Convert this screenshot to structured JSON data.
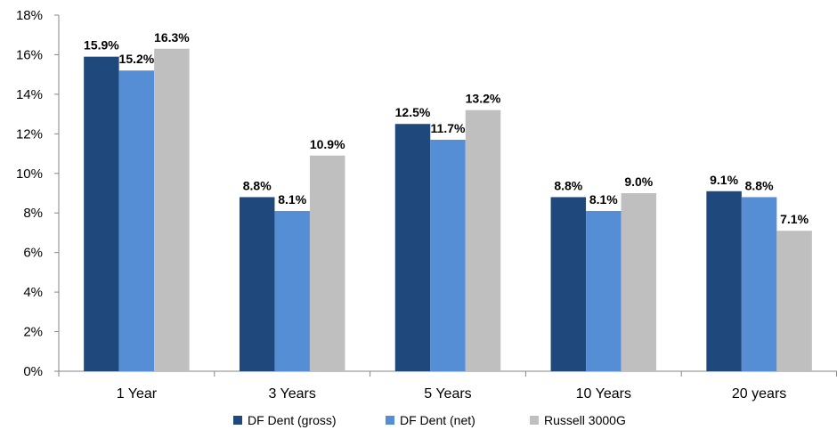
{
  "chart_data": {
    "type": "bar",
    "categories": [
      "1 Year",
      "3 Years",
      "5 Years",
      "10 Years",
      "20 years"
    ],
    "series": [
      {
        "name": "DF Dent (gross)",
        "color": "#1f497d",
        "values": [
          15.9,
          8.8,
          12.5,
          8.8,
          9.1
        ],
        "labels": [
          "15.9%",
          "8.8%",
          "12.5%",
          "8.8%",
          "9.1%"
        ]
      },
      {
        "name": "DF Dent (net)",
        "color": "#558ed5",
        "values": [
          15.2,
          8.1,
          11.7,
          8.1,
          8.8
        ],
        "labels": [
          "15.2%",
          "8.1%",
          "11.7%",
          "8.1%",
          "8.8%"
        ]
      },
      {
        "name": "Russell 3000G",
        "color": "#bfbfbf",
        "values": [
          16.3,
          10.9,
          13.2,
          9.0,
          7.1
        ],
        "labels": [
          "16.3%",
          "10.9%",
          "13.2%",
          "9.0%",
          "7.1%"
        ]
      }
    ],
    "yticks": [
      "0%",
      "2%",
      "4%",
      "6%",
      "8%",
      "10%",
      "12%",
      "14%",
      "16%",
      "18%"
    ],
    "ylim": [
      0,
      18
    ],
    "grid": false,
    "legend_position": "bottom",
    "title": "",
    "xlabel": "",
    "ylabel": ""
  }
}
